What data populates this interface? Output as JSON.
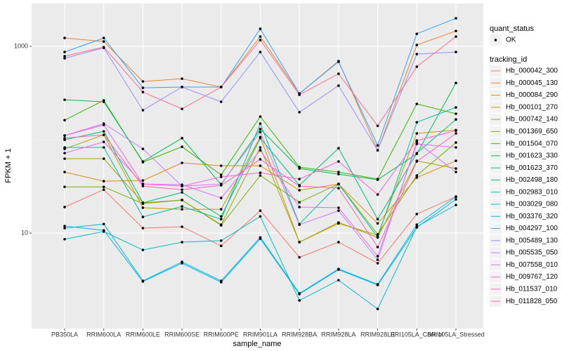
{
  "chart_data": {
    "type": "line",
    "x_label": "sample_name",
    "y_label": "FPKM + 1",
    "categories": [
      "PB350LA",
      "RRIM600LA",
      "RRIM600LE",
      "RRIM600SE",
      "RRIM600PE",
      "RRIM901LA",
      "RRIM928BA",
      "RRIM928LA",
      "RRIM928LE",
      "BRI105LA_Control",
      "BRI105LA_Stressed"
    ],
    "ylim": [
      0.95,
      2880
    ],
    "yticks": [
      10,
      1000
    ],
    "log_y": true,
    "grid": true,
    "legend_shape_title": "quant_status",
    "legend_shape_entries": [
      "OK"
    ],
    "legend_title": "tracking_id",
    "point_color": "#000000",
    "series": [
      {
        "name": "Hb_000042_300",
        "color": "#F8766D",
        "values": [
          19.0,
          29.2,
          11.3,
          11.7,
          7.3,
          17.4,
          5.5,
          8.0,
          4.75,
          16.0,
          24.6
        ]
      },
      {
        "name": "Hb_000045_130",
        "color": "#EA8331",
        "values": [
          1231,
          1129,
          421,
          451,
          367,
          1274,
          313,
          695,
          77,
          1035,
          1463
        ]
      },
      {
        "name": "Hb_000084_290",
        "color": "#D89000",
        "values": [
          45.1,
          36.0,
          36.6,
          56.5,
          52.7,
          52.7,
          28.8,
          33.6,
          12.7,
          39.3,
          59.5
        ]
      },
      {
        "name": "Hb_000101_270",
        "color": "#C09B00",
        "values": [
          79.8,
          113,
          18.7,
          18.0,
          18.0,
          107,
          8.0,
          12.7,
          9.5,
          117,
          127
        ]
      },
      {
        "name": "Hb_000742_140",
        "color": "#A3A500",
        "values": [
          62.7,
          62.7,
          21.1,
          22.6,
          12.3,
          82.7,
          8.0,
          13.0,
          9.0,
          59.5,
          49.2
        ]
      },
      {
        "name": "Hb_001369_650",
        "color": "#7CAE00",
        "values": [
          31.3,
          31.3,
          20.7,
          22.6,
          12.1,
          41.4,
          21.4,
          33.6,
          9.7,
          41.4,
          93.3
        ]
      },
      {
        "name": "Hb_001504_070",
        "color": "#39B600",
        "values": [
          162,
          264,
          57.5,
          84.1,
          42.1,
          177,
          50.9,
          45.1,
          37.9,
          242,
          190
        ]
      },
      {
        "name": "Hb_001623_330",
        "color": "#00BB4E",
        "values": [
          268,
          255,
          58.5,
          104,
          33.0,
          130,
          49.2,
          42.8,
          37.3,
          70.7,
          406
        ]
      },
      {
        "name": "Hb_001623_370",
        "color": "#00BF7D",
        "values": [
          100,
          123,
          21.1,
          27.3,
          15.1,
          104,
          32.5,
          81.2,
          14.1,
          71.9,
          165
        ]
      },
      {
        "name": "Hb_002498_180",
        "color": "#00C1A3",
        "values": [
          82.7,
          82.7,
          14.9,
          19.3,
          14.1,
          149,
          12.5,
          33.6,
          9.0,
          154,
          222
        ]
      },
      {
        "name": "Hb_002983_010",
        "color": "#00BFC4",
        "values": [
          8.6,
          10.4,
          6.6,
          8.0,
          8.3,
          15.1,
          1.9,
          3.13,
          1.54,
          11.7,
          20.0
        ]
      },
      {
        "name": "Hb_003029_080",
        "color": "#00BAE0",
        "values": [
          11.3,
          12.5,
          3.08,
          4.92,
          3.08,
          9.0,
          2.26,
          4.14,
          2.83,
          12.3,
          24.6
        ]
      },
      {
        "name": "Hb_003376_320",
        "color": "#00B0F6",
        "values": [
          11.9,
          10.7,
          3.03,
          4.75,
          2.98,
          8.7,
          2.22,
          4.06,
          2.78,
          11.5,
          23.0
        ]
      },
      {
        "name": "Hb_004297_100",
        "color": "#35A2FF",
        "values": [
          871,
          1231,
          360,
          367,
          367,
          1542,
          313,
          684,
          87,
          1365,
          2000
        ]
      },
      {
        "name": "Hb_005489_130",
        "color": "#9590FF",
        "values": [
          745,
          966,
          207,
          367,
          255,
          871,
          197,
          380,
          77,
          827,
          871
        ]
      },
      {
        "name": "Hb_005535_050",
        "color": "#C77CFF",
        "values": [
          111,
          149,
          79.8,
          31.9,
          33.6,
          121,
          12.3,
          17.4,
          5.18,
          94.9,
          45.1
        ]
      },
      {
        "name": "Hb_007558_010",
        "color": "#E76BF3",
        "values": [
          71.9,
          94.9,
          33.6,
          33.0,
          23.8,
          77.1,
          19.0,
          18.7,
          5.65,
          90.2,
          82.7
        ]
      },
      {
        "name": "Hb_009767_120",
        "color": "#FA62DB",
        "values": [
          111,
          144,
          33.6,
          31.9,
          40.0,
          44.3,
          37.9,
          58.5,
          25.9,
          98.2,
          125
        ]
      },
      {
        "name": "Hb_011537_010",
        "color": "#FF62BC",
        "values": [
          104,
          113,
          31.9,
          29.2,
          32.5,
          61.6,
          31.9,
          30.3,
          7.08,
          58.5,
          117
        ]
      },
      {
        "name": "Hb_011828_050",
        "color": "#FF6C91",
        "values": [
          785,
          982,
          324,
          214,
          367,
          1169,
          303,
          509,
          141,
          606,
          1274
        ]
      }
    ]
  }
}
